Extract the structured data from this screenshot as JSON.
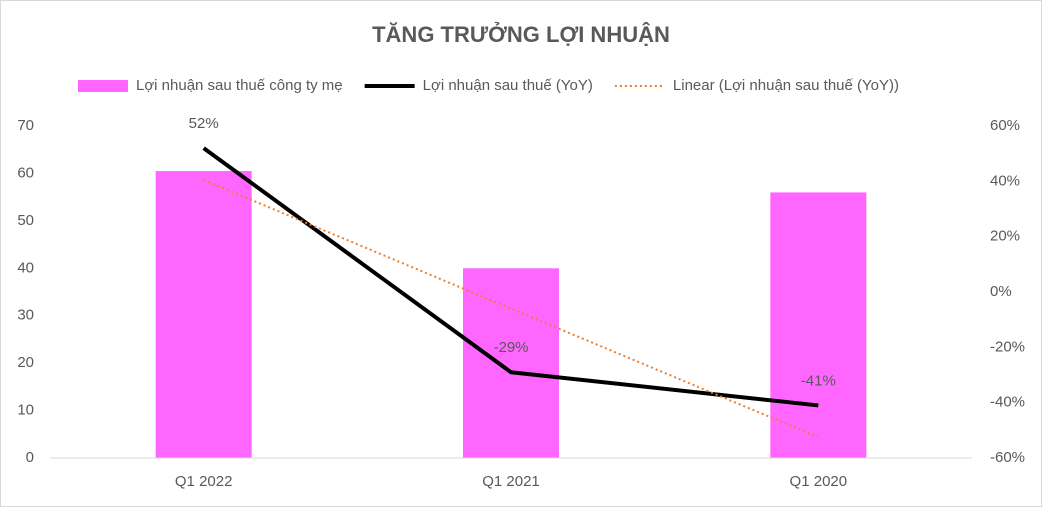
{
  "chart_data": {
    "type": "combo",
    "title": "TĂNG TRƯỞNG LỢI NHUẬN",
    "categories": [
      "Q1 2022",
      "Q1 2021",
      "Q1 2020"
    ],
    "series": [
      {
        "name": "Lợi nhuận sau thuế công ty mẹ",
        "type": "bar",
        "color": "#ff66ff",
        "values": [
          60.5,
          40,
          56
        ]
      },
      {
        "name": "Lợi nhuận sau thuế (YoY)",
        "type": "line",
        "axis": "y2",
        "color": "#000000",
        "values": [
          52,
          -29,
          -41
        ],
        "value_labels": [
          "52%",
          "-29%",
          "-41%"
        ]
      },
      {
        "name": "Linear (Lợi nhuận sau thuế (YoY))",
        "type": "trendline",
        "axis": "y2",
        "color": "#ed7d31",
        "values": [
          40.5,
          -6,
          -52.5
        ]
      }
    ],
    "ylim": [
      0,
      70
    ],
    "yticks": [
      0,
      10,
      20,
      30,
      40,
      50,
      60,
      70
    ],
    "y2lim": [
      -60,
      60
    ],
    "y2ticks": [
      {
        "value": -60,
        "label": "-60%"
      },
      {
        "value": -40,
        "label": "-40%"
      },
      {
        "value": -20,
        "label": "-20%"
      },
      {
        "value": 0,
        "label": "0%"
      },
      {
        "value": 20,
        "label": "20%"
      },
      {
        "value": 40,
        "label": "40%"
      },
      {
        "value": 60,
        "label": "60%"
      }
    ],
    "grid": false,
    "legend": "top"
  }
}
